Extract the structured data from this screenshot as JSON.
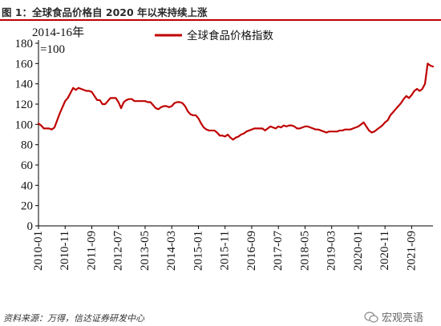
{
  "figure_title": "图 1：全球食品价格自 2020 年以来持续上涨",
  "source_note": "资料来源：万得，信达证券研发中心",
  "watermark": "宏观亮语",
  "colors": {
    "line": "#c00000",
    "rule": "#c00000",
    "axis": "#000000"
  },
  "chart_data": {
    "type": "line",
    "unit_label_line1": "2014-16年",
    "unit_label_line2": "=100",
    "ylim": [
      0,
      180
    ],
    "y_ticks": [
      0,
      20,
      40,
      60,
      80,
      100,
      120,
      140,
      160,
      180
    ],
    "grid": false,
    "legend_position": "top-center",
    "x_tick_labels": [
      "2010-01",
      "2010-11",
      "2011-09",
      "2012-07",
      "2013-05",
      "2014-03",
      "2015-01",
      "2015-11",
      "2016-09",
      "2017-07",
      "2018-05",
      "2019-03",
      "2020-01",
      "2020-11",
      "2021-09"
    ],
    "series": [
      {
        "name": "全球食品价格指数",
        "color": "#c00000",
        "start": "2010-01",
        "frequency": "monthly",
        "values": [
          101,
          99,
          96,
          96,
          96,
          95,
          97,
          104,
          111,
          117,
          123,
          126,
          131,
          136,
          134,
          136,
          135,
          134,
          133,
          133,
          132,
          128,
          124,
          124,
          120,
          120,
          123,
          126,
          126,
          126,
          122,
          116,
          122,
          124,
          125,
          125,
          123,
          123,
          123,
          123,
          123,
          122,
          122,
          119,
          116,
          115,
          117,
          118,
          118,
          117,
          118,
          121,
          122,
          122,
          121,
          118,
          113,
          110,
          109,
          109,
          106,
          101,
          97,
          95,
          94,
          94,
          94,
          92,
          89,
          89,
          88,
          90,
          87,
          85,
          87,
          88,
          90,
          91,
          93,
          94,
          95,
          96,
          96,
          96,
          96,
          94,
          96,
          98,
          97,
          96,
          98,
          97,
          99,
          98,
          99,
          99,
          98,
          96,
          96,
          97,
          98,
          98,
          97,
          96,
          95,
          95,
          94,
          93,
          92,
          93,
          93,
          93,
          93,
          94,
          94,
          95,
          95,
          95,
          96,
          97,
          98,
          100,
          102,
          98,
          94,
          92,
          93,
          95,
          97,
          99,
          102,
          104,
          109,
          112,
          115,
          118,
          121,
          125,
          128,
          126,
          129,
          133,
          135,
          133,
          135,
          140,
          160,
          158,
          157
        ]
      }
    ]
  }
}
